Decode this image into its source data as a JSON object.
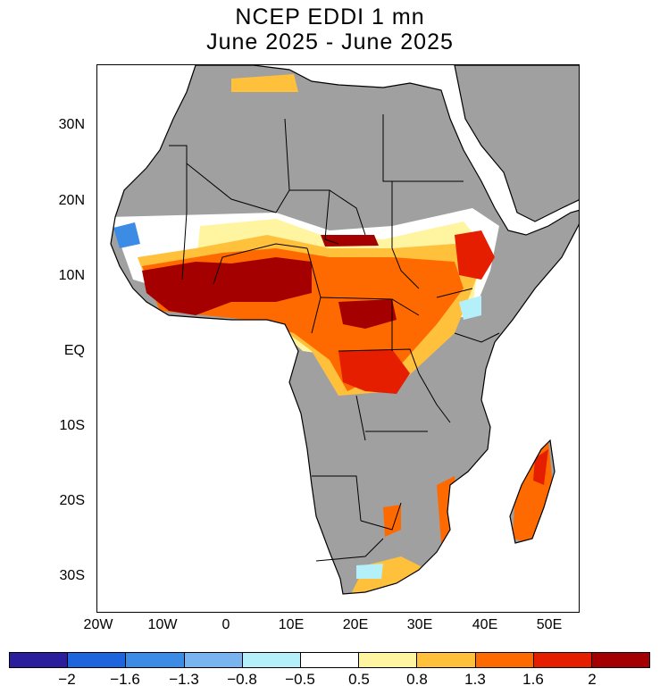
{
  "title": {
    "line1": "NCEP EDDI 1 mn",
    "line2": "June 2025 - June 2025"
  },
  "map": {
    "region": "Africa",
    "lon_range": [
      -20,
      55
    ],
    "lat_range": [
      -35,
      38
    ],
    "land_no_data_color": "#a0a0a0",
    "x_tick_labels": [
      "20W",
      "10W",
      "0",
      "10E",
      "20E",
      "30E",
      "40E",
      "50E"
    ],
    "y_tick_labels": [
      "30N",
      "20N",
      "10N",
      "EQ",
      "10S",
      "20S",
      "30S"
    ]
  },
  "legend": {
    "colors": [
      "#2a1e9c",
      "#1e64dc",
      "#3c8ce6",
      "#78b4f0",
      "#b4f0fa",
      "#ffffff",
      "#fff4a0",
      "#ffc03c",
      "#ff6a00",
      "#e61e00",
      "#a50000"
    ],
    "labels": [
      "-2",
      "-1.6",
      "-1.3",
      "-0.8",
      "-0.5",
      "0.5",
      "0.8",
      "1.3",
      "1.6",
      "2"
    ]
  }
}
